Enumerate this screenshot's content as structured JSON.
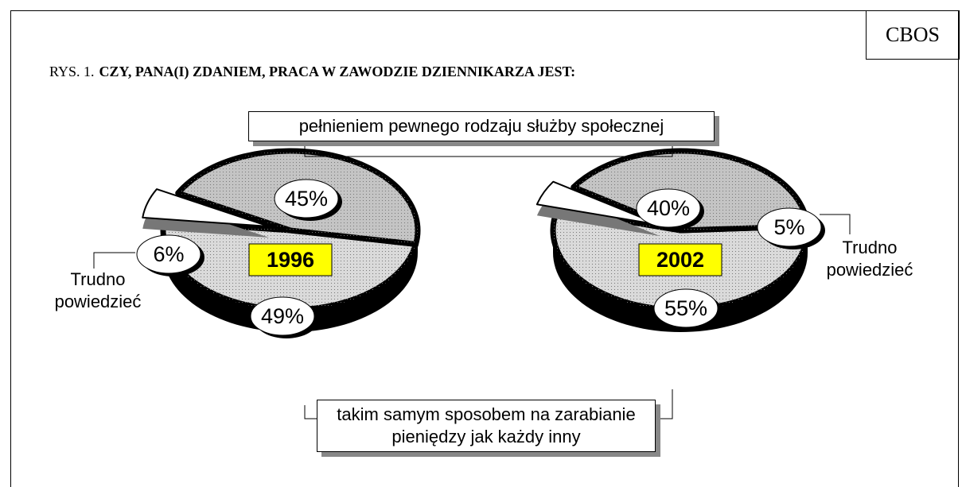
{
  "brand": "CBOS",
  "chart_data": {
    "type": "pie",
    "figure_label": "RYS. 1.",
    "title": "CZY, PANA(I) ZDANIEM, PRACA W ZAWODZIE DZIENNIKARZA JEST:",
    "categories": [
      "pełnieniem pewnego rodzaju służby społecznej",
      "takim samym sposobem na zarabianie pieniędzy jak każdy inny",
      "Trudno powiedzieć"
    ],
    "colors": [
      "#c4c4c4",
      "#dadada",
      "#ffffff"
    ],
    "series": [
      {
        "name": "1996",
        "color": "#ffff00",
        "values": [
          45,
          49,
          6
        ],
        "value_labels": [
          "45%",
          "49%",
          "6%"
        ]
      },
      {
        "name": "2002",
        "color": "#ffff00",
        "values": [
          40,
          55,
          5
        ],
        "value_labels": [
          "40%",
          "55%",
          "5%"
        ]
      }
    ]
  }
}
